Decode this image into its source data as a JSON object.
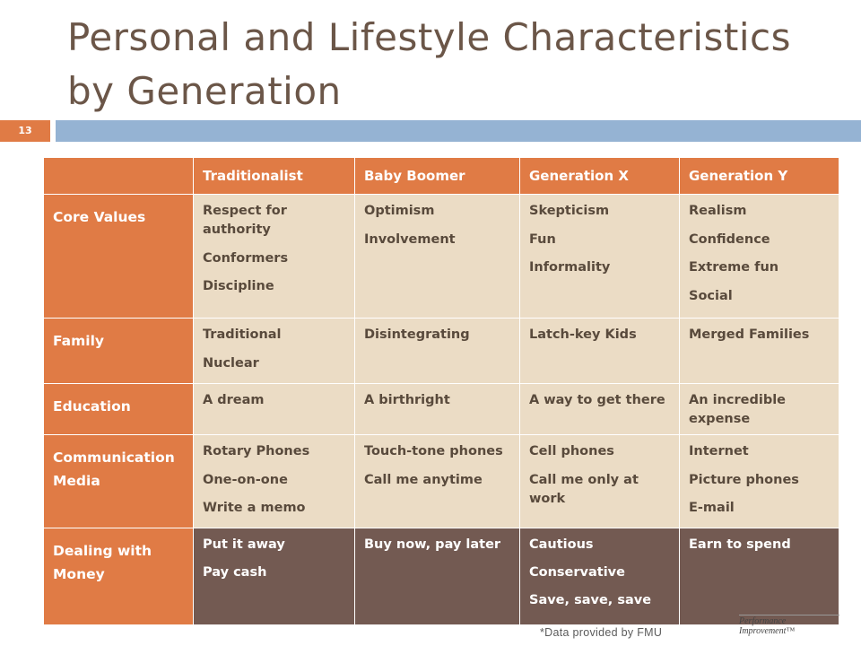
{
  "slide": {
    "title_line1": "Personal and Lifestyle Characteristics",
    "title_line2": "by Generation",
    "number": "13",
    "footnote": "*Data provided by FMU",
    "logo_text": "Performance Improvement™"
  },
  "table": {
    "columns": [
      "Traditionalist",
      "Baby Boomer",
      "Generation  X",
      "Generation  Y"
    ],
    "rows": {
      "core_values": {
        "label": "Core Values",
        "traditionalist": [
          "Respect for authority",
          "Conformers",
          "Discipline"
        ],
        "baby_boomer": [
          "Optimism",
          "Involvement"
        ],
        "generation_x": [
          "Skepticism",
          "Fun",
          "Informality"
        ],
        "generation_y": [
          "Realism",
          "Confidence",
          "Extreme fun",
          "Social"
        ]
      },
      "family": {
        "label": "Family",
        "traditionalist": [
          "Traditional",
          "Nuclear"
        ],
        "baby_boomer": [
          "Disintegrating"
        ],
        "generation_x": [
          "Latch-key Kids"
        ],
        "generation_y": [
          "Merged Families"
        ]
      },
      "education": {
        "label": "Education",
        "traditionalist": [
          "A dream"
        ],
        "baby_boomer": [
          "A birthright"
        ],
        "generation_x": [
          "A way to get there"
        ],
        "generation_y": [
          "An incredible expense"
        ]
      },
      "communication": {
        "label_line1": "Communication",
        "label_line2": "Media",
        "traditionalist": [
          "Rotary Phones",
          "One-on-one",
          "Write a memo"
        ],
        "baby_boomer": [
          "Touch-tone phones",
          "Call me anytime"
        ],
        "generation_x": [
          "Cell phones",
          "Call me only at work"
        ],
        "generation_y": [
          "Internet",
          "Picture phones",
          "E-mail"
        ]
      },
      "money": {
        "label_line1": "Dealing with",
        "label_line2": "Money",
        "traditionalist": [
          "Put it away",
          "Pay cash"
        ],
        "baby_boomer": [
          "Buy now, pay later"
        ],
        "generation_x": [
          "Cautious",
          "Conservative",
          "Save, save, save"
        ],
        "generation_y": [
          "Earn to spend"
        ]
      }
    }
  }
}
